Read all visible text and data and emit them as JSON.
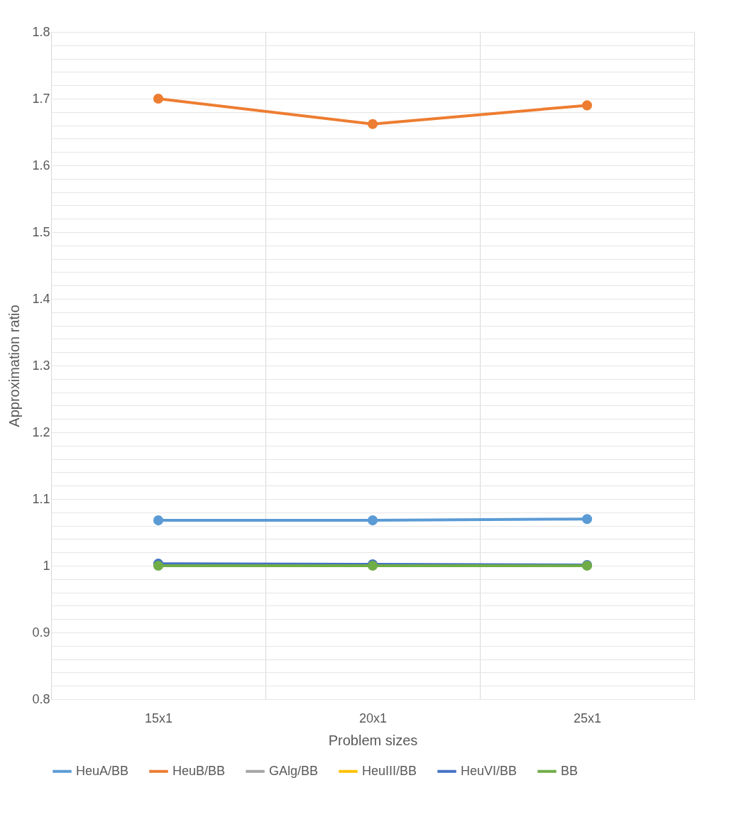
{
  "chart_data": {
    "type": "line",
    "xlabel": "Problem sizes",
    "ylabel": "Approximation ratio",
    "categories": [
      "15x1",
      "20x1",
      "25x1"
    ],
    "series": [
      {
        "name": "HeuA/BB",
        "color": "#5b9bd5",
        "values": [
          1.068,
          1.068,
          1.07
        ]
      },
      {
        "name": "HeuB/BB",
        "color": "#ed7d31",
        "values": [
          1.7,
          1.662,
          1.69
        ]
      },
      {
        "name": "GAlg/BB",
        "color": "#a5a5a5",
        "values": [
          null,
          null,
          null
        ]
      },
      {
        "name": "HeuIII/BB",
        "color": "#ffc000",
        "values": [
          null,
          null,
          null
        ]
      },
      {
        "name": "HeuVI/BB",
        "color": "#4472c4",
        "values": [
          1.003,
          1.002,
          1.001
        ]
      },
      {
        "name": "BB",
        "color": "#70ad47",
        "values": [
          1,
          1,
          1
        ]
      }
    ],
    "ylim": [
      0.8,
      1.8
    ],
    "yticks": [
      0.8,
      {
        "value": 0.82,
        "label": null
      },
      {
        "value": 0.84,
        "label": null
      },
      {
        "value": 0.86,
        "label": null
      },
      {
        "value": 0.88,
        "label": null
      },
      0.9,
      {
        "value": 0.92,
        "label": null
      },
      {
        "value": 0.94,
        "label": null
      },
      {
        "value": 0.96,
        "label": null
      },
      {
        "value": 0.98,
        "label": null
      },
      1,
      {
        "value": 1.02,
        "label": null
      },
      {
        "value": 1.04,
        "label": null
      },
      {
        "value": 1.06,
        "label": null
      },
      {
        "value": 1.08,
        "label": null
      },
      1.1,
      {
        "value": 1.12,
        "label": null
      },
      {
        "value": 1.14,
        "label": null
      },
      {
        "value": 1.16,
        "label": null
      },
      {
        "value": 1.18,
        "label": null
      },
      1.2,
      {
        "value": 1.22,
        "label": null
      },
      {
        "value": 1.24,
        "label": null
      },
      {
        "value": 1.26,
        "label": null
      },
      {
        "value": 1.28,
        "label": null
      },
      1.3,
      {
        "value": 1.32,
        "label": null
      },
      {
        "value": 1.34,
        "label": null
      },
      {
        "value": 1.36,
        "label": null
      },
      {
        "value": 1.38,
        "label": null
      },
      1.4,
      {
        "value": 1.42,
        "label": null
      },
      {
        "value": 1.44,
        "label": null
      },
      {
        "value": 1.46,
        "label": null
      },
      {
        "value": 1.48,
        "label": null
      },
      1.5,
      {
        "value": 1.52,
        "label": null
      },
      {
        "value": 1.54,
        "label": null
      },
      {
        "value": 1.56,
        "label": null
      },
      {
        "value": 1.58,
        "label": null
      },
      1.6,
      {
        "value": 1.62,
        "label": null
      },
      {
        "value": 1.64,
        "label": null
      },
      {
        "value": 1.66,
        "label": null
      },
      {
        "value": 1.68,
        "label": null
      },
      1.7,
      {
        "value": 1.72,
        "label": null
      },
      {
        "value": 1.74,
        "label": null
      },
      {
        "value": 1.76,
        "label": null
      },
      {
        "value": 1.78,
        "label": null
      },
      1.8
    ],
    "grid": true,
    "legend": "bottom",
    "marker": "circle",
    "line_style": "solid"
  }
}
